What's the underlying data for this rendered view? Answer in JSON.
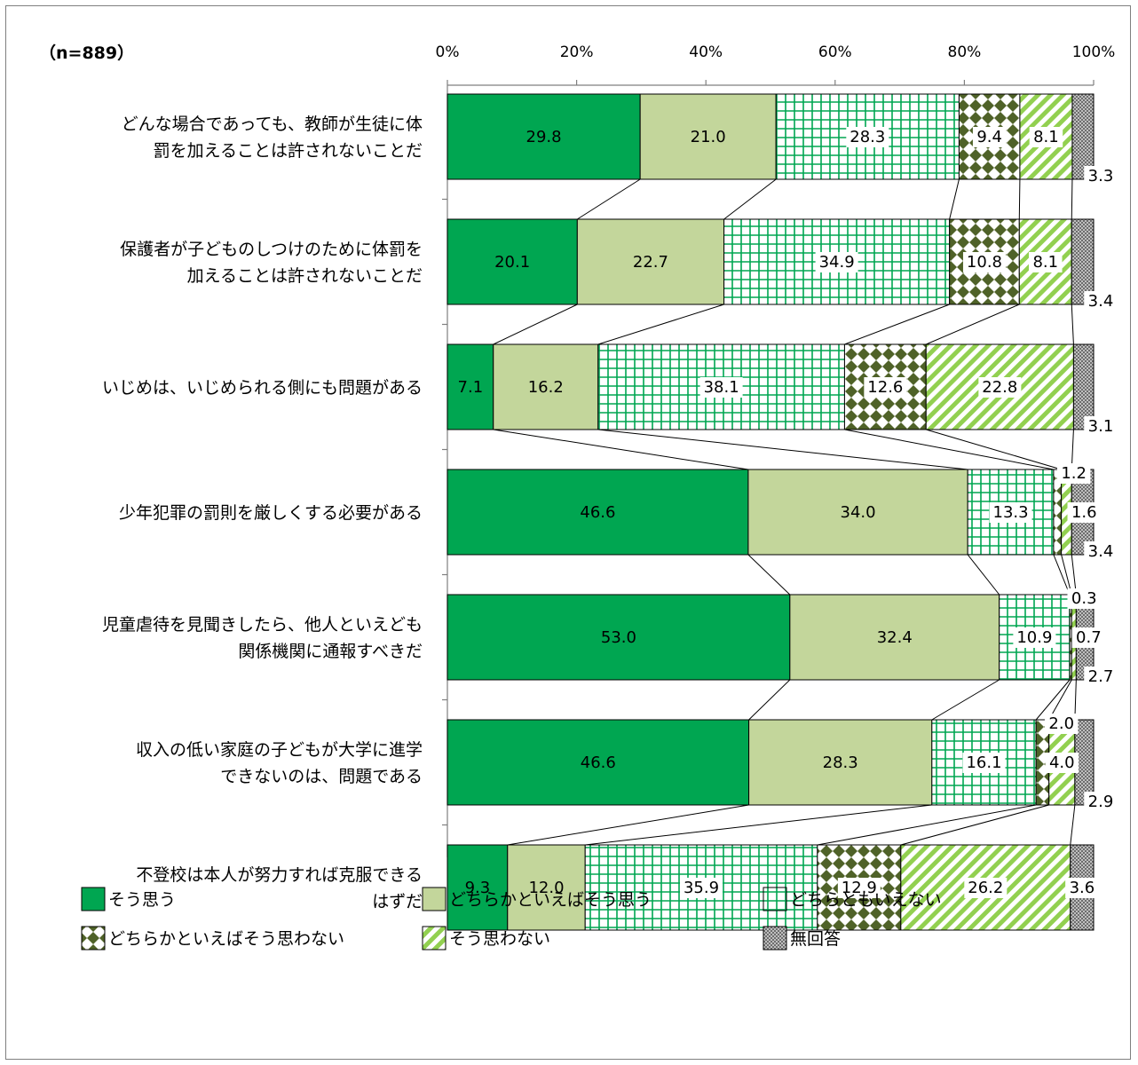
{
  "chart_data": {
    "type": "bar",
    "stacked": true,
    "orientation": "horizontal",
    "normalized_percent": true,
    "sample_note": "（n=889）",
    "x_ticks": [
      "0%",
      "20%",
      "40%",
      "60%",
      "80%",
      "100%"
    ],
    "xlim": [
      0,
      100
    ],
    "grid": false,
    "legend_position": "bottom",
    "categories": [
      [
        "どんな場合であっても、教師が生徒に体",
        "罰を加えることは許されないことだ"
      ],
      [
        "保護者が子どものしつけのために体罰を",
        "加えることは許されないことだ"
      ],
      [
        "いじめは、いじめられる側にも問題がある"
      ],
      [
        "少年犯罪の罰則を厳しくする必要がある"
      ],
      [
        "児童虐待を見聞きしたら、他人といえども",
        "関係機関に通報すべきだ"
      ],
      [
        "収入の低い家庭の子どもが大学に進学",
        "できないのは、問題である"
      ],
      [
        "不登校は本人が努力すれば克服できる",
        "はずだ"
      ]
    ],
    "series": [
      {
        "name": "そう思う",
        "color": "#00a651",
        "pattern": "solid",
        "values": [
          29.8,
          20.1,
          7.1,
          46.6,
          53.0,
          46.6,
          9.3
        ],
        "labels": [
          "29.8",
          "20.1",
          "7.1",
          "46.6",
          "53.0",
          "46.6",
          "9.3"
        ]
      },
      {
        "name": "どちらかといえばそう思う",
        "color": "#c3d69b",
        "pattern": "solid",
        "values": [
          21.0,
          22.7,
          16.2,
          34.0,
          32.4,
          28.3,
          12.0
        ],
        "labels": [
          "21.0",
          "22.7",
          "16.2",
          "34.0",
          "32.4",
          "28.3",
          "12.0"
        ]
      },
      {
        "name": "どちらともいえない",
        "color": "#00a651",
        "pattern": "grid",
        "values": [
          28.3,
          34.9,
          38.1,
          13.3,
          10.9,
          16.1,
          35.9
        ],
        "labels": [
          "28.3",
          "34.9",
          "38.1",
          "13.3",
          "10.9",
          "16.1",
          "35.9"
        ]
      },
      {
        "name": "どちらかといえばそう思わない",
        "color": "#4f6228",
        "pattern": "diamond",
        "values": [
          9.4,
          10.8,
          12.6,
          1.2,
          0.3,
          2.0,
          12.9
        ],
        "labels": [
          "9.4",
          "10.8",
          "12.6",
          "1.2",
          "0.3",
          "2.0",
          "12.9"
        ]
      },
      {
        "name": "そう思わない",
        "color": "#92d050",
        "pattern": "diagonal",
        "values": [
          8.1,
          8.1,
          22.8,
          1.6,
          0.7,
          4.0,
          26.2
        ],
        "labels": [
          "8.1",
          "8.1",
          "22.8",
          "1.6",
          "0.7",
          "4.0",
          "26.2"
        ]
      },
      {
        "name": "無回答",
        "color": "#7f7f7f",
        "pattern": "dots",
        "values": [
          3.3,
          3.4,
          3.1,
          3.4,
          2.7,
          2.9,
          3.6
        ],
        "labels": [
          "3.3",
          "3.4",
          "3.1",
          "3.4",
          "2.7",
          "2.9",
          "3.6"
        ]
      }
    ]
  }
}
